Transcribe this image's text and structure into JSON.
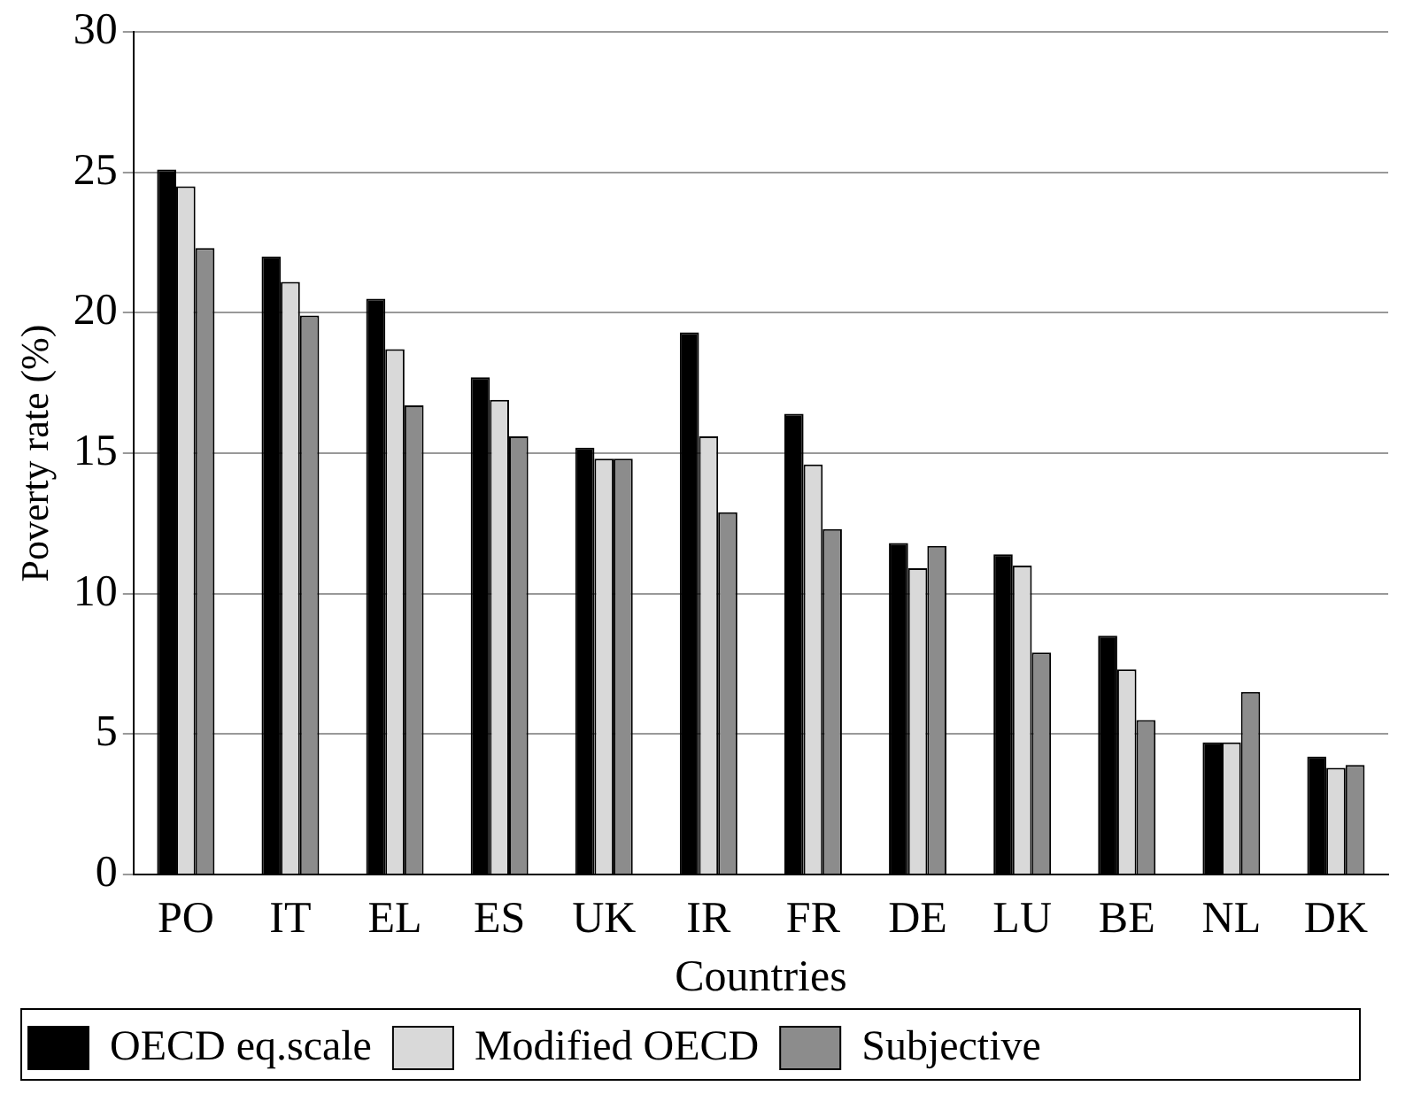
{
  "chart_data": {
    "type": "bar",
    "xlabel": "Countries",
    "ylabel": "Poverty rate (%)",
    "categories": [
      "PO",
      "IT",
      "EL",
      "ES",
      "UK",
      "IR",
      "FR",
      "DE",
      "LU",
      "BE",
      "NL",
      "DK"
    ],
    "series": [
      {
        "name": "OECD eq.scale",
        "color": "#000000",
        "values": [
          25.1,
          22.0,
          20.5,
          17.7,
          15.2,
          19.3,
          16.4,
          11.8,
          11.4,
          8.5,
          4.7,
          4.2
        ]
      },
      {
        "name": "Modified OECD",
        "color": "#d9d9d9",
        "values": [
          24.5,
          21.1,
          18.7,
          16.9,
          14.8,
          15.6,
          14.6,
          10.9,
          11.0,
          7.3,
          4.7,
          3.8
        ]
      },
      {
        "name": "Subjective",
        "color": "#8c8c8c",
        "values": [
          22.3,
          19.9,
          16.7,
          15.6,
          14.8,
          12.9,
          12.3,
          11.7,
          7.9,
          5.5,
          6.5,
          3.9
        ]
      }
    ],
    "ylim": [
      0,
      30
    ],
    "yticks": [
      0,
      5,
      10,
      15,
      20,
      25,
      30
    ],
    "grid": "y",
    "legend": "bottom"
  }
}
